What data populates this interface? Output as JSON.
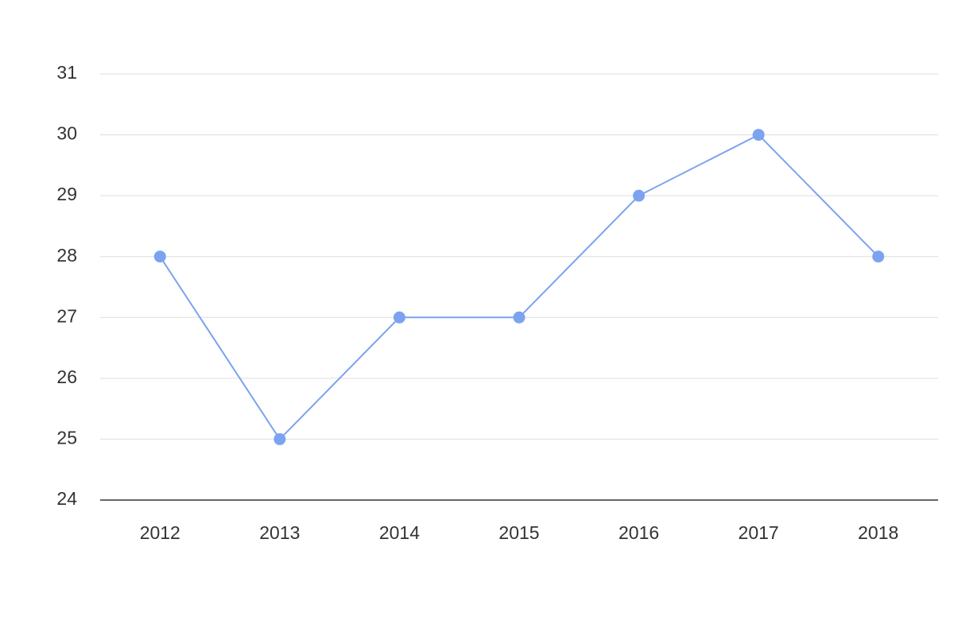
{
  "chart_data": {
    "type": "line",
    "categories": [
      "2012",
      "2013",
      "2014",
      "2015",
      "2016",
      "2017",
      "2018"
    ],
    "values": [
      28,
      25,
      27,
      27,
      29,
      30,
      28
    ],
    "color": "#7ba3ef",
    "ylim": [
      24,
      31
    ],
    "yticks": [
      24,
      25,
      26,
      27,
      28,
      29,
      30,
      31
    ],
    "grid": true
  }
}
